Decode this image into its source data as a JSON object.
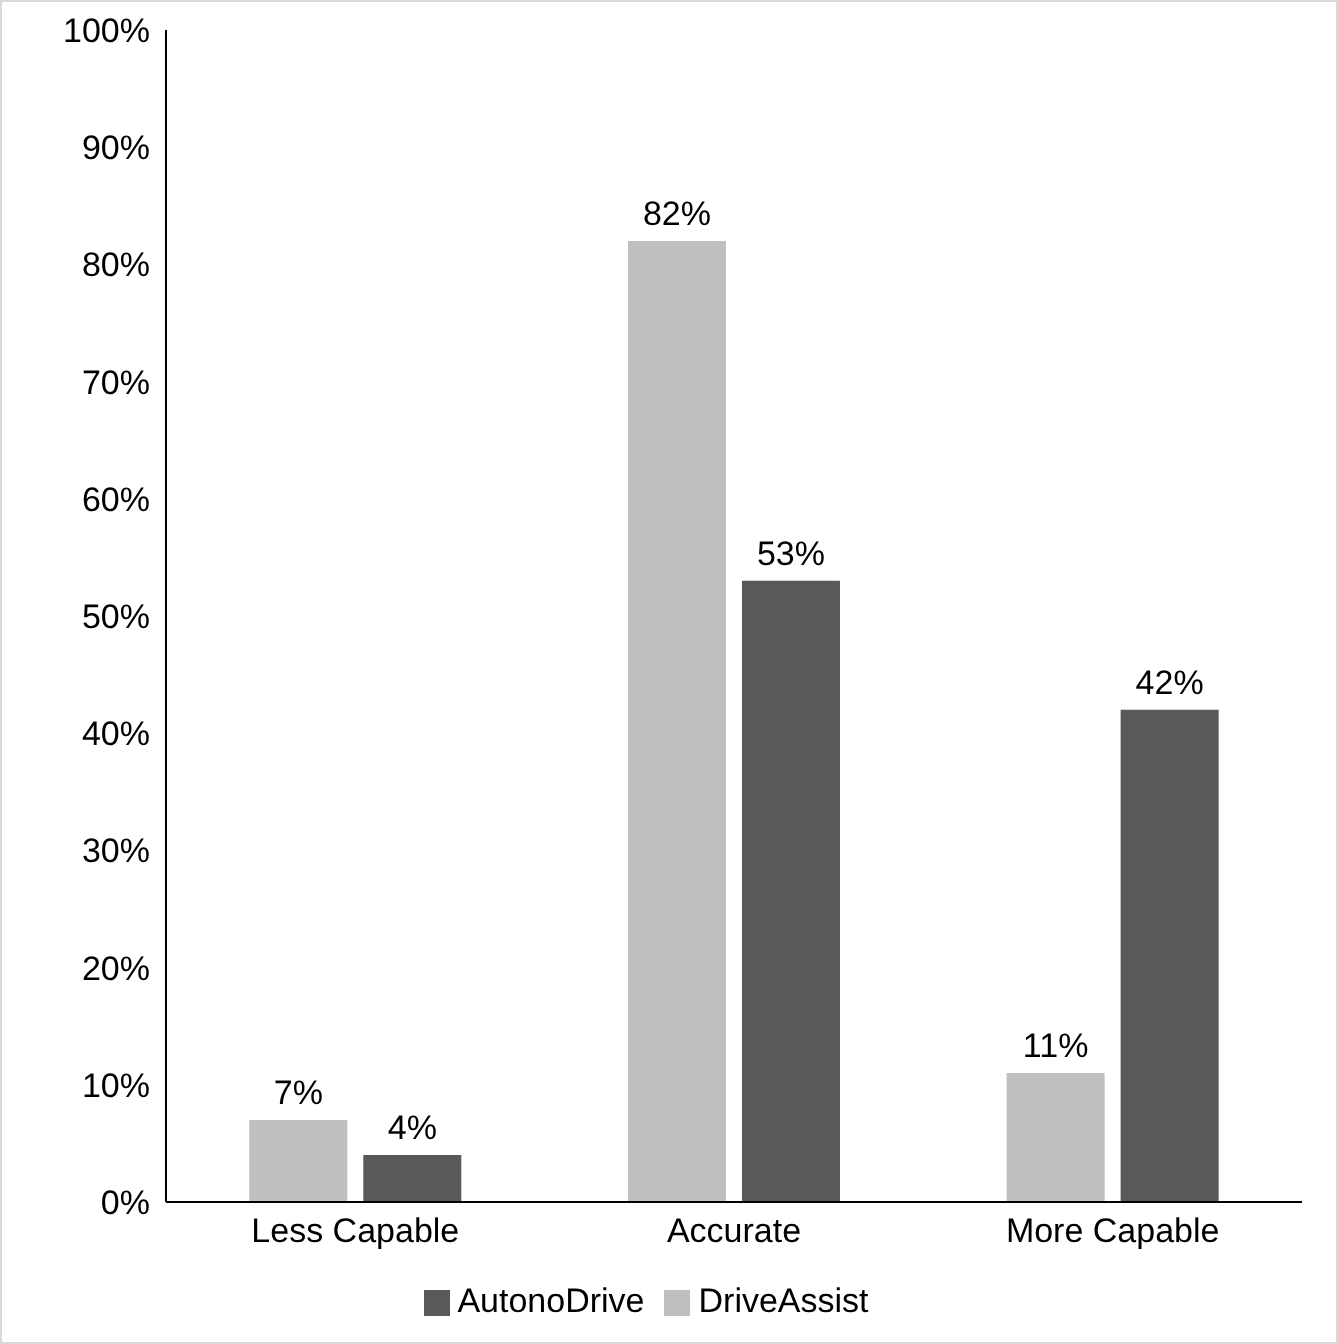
{
  "chart_data": {
    "type": "bar",
    "categories": [
      "Less Capable",
      "Accurate",
      "More Capable"
    ],
    "series": [
      {
        "name": "DriveAssist",
        "color": "#bfbfbf",
        "values": [
          7,
          82,
          11
        ],
        "value_labels": [
          "7%",
          "82%",
          "11%"
        ]
      },
      {
        "name": "AutonoDrive",
        "color": "#595959",
        "values": [
          4,
          53,
          42
        ],
        "value_labels": [
          "4%",
          "53%",
          "42%"
        ]
      }
    ],
    "ylim": [
      0,
      100
    ],
    "yticks": [
      {
        "value": 0,
        "label": "0%"
      },
      {
        "value": 10,
        "label": "10%"
      },
      {
        "value": 20,
        "label": "20%"
      },
      {
        "value": 30,
        "label": "30%"
      },
      {
        "value": 40,
        "label": "40%"
      },
      {
        "value": 50,
        "label": "50%"
      },
      {
        "value": 60,
        "label": "60%"
      },
      {
        "value": 70,
        "label": "70%"
      },
      {
        "value": 80,
        "label": "80%"
      },
      {
        "value": 90,
        "label": "90%"
      },
      {
        "value": 100,
        "label": "100%"
      }
    ],
    "grid": false,
    "legend": "bottom"
  }
}
